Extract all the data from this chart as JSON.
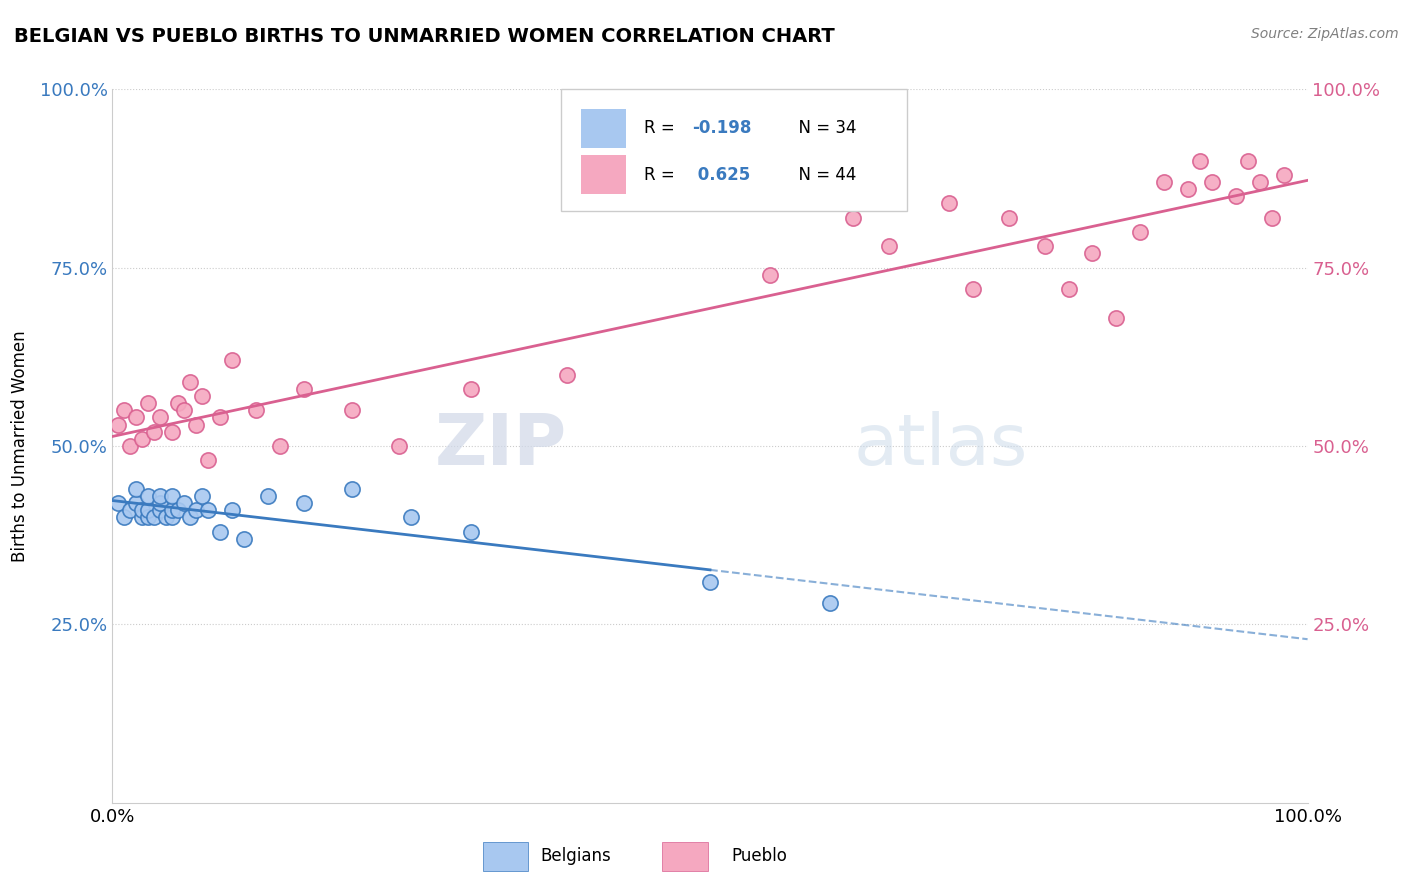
{
  "title": "BELGIAN VS PUEBLO BIRTHS TO UNMARRIED WOMEN CORRELATION CHART",
  "source": "Source: ZipAtlas.com",
  "ylabel": "Births to Unmarried Women",
  "xlim": [
    0,
    1
  ],
  "ylim": [
    0,
    1
  ],
  "xtick_labels": [
    "0.0%",
    "100.0%"
  ],
  "ytick_vals": [
    0.25,
    0.5,
    0.75,
    1.0
  ],
  "ytick_labels": [
    "25.0%",
    "50.0%",
    "75.0%",
    "100.0%"
  ],
  "belgian_color": "#a8c8f0",
  "pueblo_color": "#f5a8c0",
  "belgian_line_color": "#3a7abf",
  "pueblo_line_color": "#d96090",
  "watermark_zip": "ZIP",
  "watermark_atlas": "atlas",
  "legend_r1": "R = -0.198",
  "legend_n1": "N = 34",
  "legend_r2": "R =  0.625",
  "legend_n2": "N = 44",
  "belgian_x": [
    0.005,
    0.01,
    0.015,
    0.02,
    0.02,
    0.025,
    0.025,
    0.03,
    0.03,
    0.03,
    0.035,
    0.04,
    0.04,
    0.04,
    0.045,
    0.05,
    0.05,
    0.05,
    0.055,
    0.06,
    0.065,
    0.07,
    0.075,
    0.08,
    0.09,
    0.1,
    0.11,
    0.13,
    0.16,
    0.2,
    0.25,
    0.3,
    0.5,
    0.6
  ],
  "belgian_y": [
    0.42,
    0.4,
    0.41,
    0.42,
    0.44,
    0.4,
    0.41,
    0.4,
    0.41,
    0.43,
    0.4,
    0.41,
    0.42,
    0.43,
    0.4,
    0.4,
    0.41,
    0.43,
    0.41,
    0.42,
    0.4,
    0.41,
    0.43,
    0.41,
    0.38,
    0.41,
    0.37,
    0.43,
    0.42,
    0.44,
    0.4,
    0.38,
    0.31,
    0.28
  ],
  "pueblo_x": [
    0.005,
    0.01,
    0.015,
    0.02,
    0.025,
    0.03,
    0.035,
    0.04,
    0.05,
    0.055,
    0.06,
    0.065,
    0.07,
    0.075,
    0.08,
    0.09,
    0.1,
    0.12,
    0.14,
    0.16,
    0.2,
    0.24,
    0.3,
    0.38,
    0.55,
    0.62,
    0.65,
    0.7,
    0.72,
    0.75,
    0.78,
    0.8,
    0.82,
    0.84,
    0.86,
    0.88,
    0.9,
    0.91,
    0.92,
    0.94,
    0.95,
    0.96,
    0.97,
    0.98
  ],
  "pueblo_y": [
    0.53,
    0.55,
    0.5,
    0.54,
    0.51,
    0.56,
    0.52,
    0.54,
    0.52,
    0.56,
    0.55,
    0.59,
    0.53,
    0.57,
    0.48,
    0.54,
    0.62,
    0.55,
    0.5,
    0.58,
    0.55,
    0.5,
    0.58,
    0.6,
    0.74,
    0.82,
    0.78,
    0.84,
    0.72,
    0.82,
    0.78,
    0.72,
    0.77,
    0.68,
    0.8,
    0.87,
    0.86,
    0.9,
    0.87,
    0.85,
    0.9,
    0.87,
    0.82,
    0.88
  ]
}
